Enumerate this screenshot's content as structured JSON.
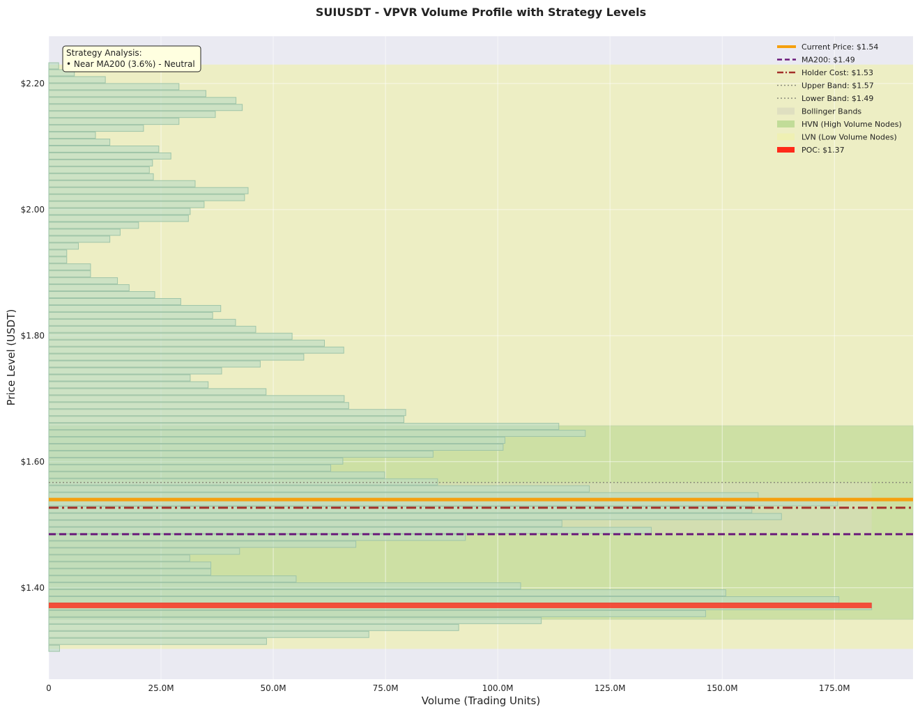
{
  "chart_data": {
    "type": "bar",
    "orientation": "horizontal",
    "title": "SUIUSDT - VPVR Volume Profile with Strategy Levels",
    "xlabel": "Volume (Trading Units)",
    "ylabel": "Price Level (USDT)",
    "xlim": [
      0,
      192500000
    ],
    "ylim": [
      1.255,
      2.275
    ],
    "grid": true,
    "legend_position": "top-right",
    "x_ticks": [
      {
        "value": 0,
        "label": "0"
      },
      {
        "value": 25000000,
        "label": "25.0M"
      },
      {
        "value": 50000000,
        "label": "50.0M"
      },
      {
        "value": 75000000,
        "label": "75.0M"
      },
      {
        "value": 100000000,
        "label": "100.0M"
      },
      {
        "value": 125000000,
        "label": "125.0M"
      },
      {
        "value": 150000000,
        "label": "150.0M"
      },
      {
        "value": 175000000,
        "label": "175.0M"
      }
    ],
    "y_ticks": [
      {
        "value": 1.4,
        "label": "$1.40"
      },
      {
        "value": 1.6,
        "label": "$1.60"
      },
      {
        "value": 1.8,
        "label": "$1.80"
      },
      {
        "value": 2.0,
        "label": "$2.00"
      },
      {
        "value": 2.2,
        "label": "$2.20"
      }
    ],
    "price_bin_size": 0.011,
    "volume_profile": [
      {
        "price": 2.228,
        "volume": 2.2
      },
      {
        "price": 2.217,
        "volume": 5.7
      },
      {
        "price": 2.206,
        "volume": 12.6
      },
      {
        "price": 2.195,
        "volume": 29.0
      },
      {
        "price": 2.184,
        "volume": 35.0
      },
      {
        "price": 2.173,
        "volume": 41.7
      },
      {
        "price": 2.162,
        "volume": 43.1
      },
      {
        "price": 2.151,
        "volume": 37.1
      },
      {
        "price": 2.14,
        "volume": 29.0
      },
      {
        "price": 2.129,
        "volume": 21.1
      },
      {
        "price": 2.118,
        "volume": 10.4
      },
      {
        "price": 2.107,
        "volume": 13.6
      },
      {
        "price": 2.096,
        "volume": 24.5
      },
      {
        "price": 2.085,
        "volume": 27.2
      },
      {
        "price": 2.074,
        "volume": 23.1
      },
      {
        "price": 2.063,
        "volume": 22.4
      },
      {
        "price": 2.052,
        "volume": 23.3
      },
      {
        "price": 2.041,
        "volume": 32.6
      },
      {
        "price": 2.03,
        "volume": 44.4
      },
      {
        "price": 2.019,
        "volume": 43.6
      },
      {
        "price": 2.008,
        "volume": 34.6
      },
      {
        "price": 1.997,
        "volume": 31.5
      },
      {
        "price": 1.986,
        "volume": 31.1
      },
      {
        "price": 1.975,
        "volume": 20.0
      },
      {
        "price": 1.964,
        "volume": 15.9
      },
      {
        "price": 1.953,
        "volume": 13.6
      },
      {
        "price": 1.942,
        "volume": 6.6
      },
      {
        "price": 1.931,
        "volume": 4.0
      },
      {
        "price": 1.92,
        "volume": 4.0
      },
      {
        "price": 1.909,
        "volume": 9.3
      },
      {
        "price": 1.898,
        "volume": 9.3
      },
      {
        "price": 1.887,
        "volume": 15.3
      },
      {
        "price": 1.876,
        "volume": 17.9
      },
      {
        "price": 1.865,
        "volume": 23.6
      },
      {
        "price": 1.854,
        "volume": 29.4
      },
      {
        "price": 1.843,
        "volume": 38.3
      },
      {
        "price": 1.832,
        "volume": 36.5
      },
      {
        "price": 1.821,
        "volume": 41.6
      },
      {
        "price": 1.81,
        "volume": 46.1
      },
      {
        "price": 1.799,
        "volume": 54.2
      },
      {
        "price": 1.788,
        "volume": 61.4
      },
      {
        "price": 1.777,
        "volume": 65.7
      },
      {
        "price": 1.766,
        "volume": 56.8
      },
      {
        "price": 1.755,
        "volume": 47.1
      },
      {
        "price": 1.744,
        "volume": 38.5
      },
      {
        "price": 1.733,
        "volume": 31.5
      },
      {
        "price": 1.722,
        "volume": 35.5
      },
      {
        "price": 1.711,
        "volume": 48.4
      },
      {
        "price": 1.7,
        "volume": 65.8
      },
      {
        "price": 1.689,
        "volume": 66.8
      },
      {
        "price": 1.678,
        "volume": 79.5
      },
      {
        "price": 1.667,
        "volume": 79.1
      },
      {
        "price": 1.656,
        "volume": 113.6
      },
      {
        "price": 1.645,
        "volume": 119.5
      },
      {
        "price": 1.634,
        "volume": 101.6
      },
      {
        "price": 1.623,
        "volume": 101.2
      },
      {
        "price": 1.612,
        "volume": 85.6
      },
      {
        "price": 1.601,
        "volume": 65.5
      },
      {
        "price": 1.59,
        "volume": 62.8
      },
      {
        "price": 1.579,
        "volume": 74.8
      },
      {
        "price": 1.568,
        "volume": 86.6
      },
      {
        "price": 1.557,
        "volume": 120.4
      },
      {
        "price": 1.546,
        "volume": 158.0
      },
      {
        "price": 1.535,
        "volume": 175.7
      },
      {
        "price": 1.524,
        "volume": 156.6
      },
      {
        "price": 1.513,
        "volume": 163.2
      },
      {
        "price": 1.502,
        "volume": 114.3
      },
      {
        "price": 1.491,
        "volume": 134.2
      },
      {
        "price": 1.48,
        "volume": 92.8
      },
      {
        "price": 1.469,
        "volume": 68.4
      },
      {
        "price": 1.458,
        "volume": 42.5
      },
      {
        "price": 1.447,
        "volume": 31.4
      },
      {
        "price": 1.436,
        "volume": 36.1
      },
      {
        "price": 1.425,
        "volume": 36.1
      },
      {
        "price": 1.414,
        "volume": 55.1
      },
      {
        "price": 1.403,
        "volume": 105.1
      },
      {
        "price": 1.392,
        "volume": 150.8
      },
      {
        "price": 1.381,
        "volume": 176.0
      },
      {
        "price": 1.37,
        "volume": 183.3
      },
      {
        "price": 1.359,
        "volume": 146.3
      },
      {
        "price": 1.348,
        "volume": 109.7
      },
      {
        "price": 1.337,
        "volume": 91.3
      },
      {
        "price": 1.326,
        "volume": 71.3
      },
      {
        "price": 1.315,
        "volume": 48.5
      },
      {
        "price": 1.304,
        "volume": 2.4
      }
    ],
    "volume_unit": "M",
    "levels": [
      {
        "key": "current",
        "value": 1.54,
        "label": "Current Price: $1.54",
        "color": "#f5a00f",
        "style": "solid"
      },
      {
        "key": "ma200",
        "value": 1.485,
        "label": "MA200: $1.49",
        "color": "#6a1a7a",
        "style": "dashed"
      },
      {
        "key": "holder",
        "value": 1.527,
        "label": "Holder Cost: $1.53",
        "color": "#a3302a",
        "style": "dashdot"
      },
      {
        "key": "upper",
        "value": 1.567,
        "label": "Upper Band: $1.57",
        "color": "#8a8a7a",
        "style": "dotted"
      },
      {
        "key": "lower",
        "value": 1.485,
        "label": "Lower Band: $1.49",
        "color": "#8a8a7a",
        "style": "dotted"
      }
    ],
    "poc": {
      "value": 1.372,
      "label": "POC: $1.37",
      "color": "#ff2a1a"
    },
    "bollinger_band": {
      "low": 1.485,
      "high": 1.567,
      "label": "Bollinger Bands",
      "color": "#dcdcc0"
    },
    "hvn_zone": {
      "low": 1.35,
      "high": 1.657,
      "label": "HVN (High Volume Nodes)",
      "color": "#b8d890"
    },
    "lvn_zone": {
      "low": 1.303,
      "high": 2.23,
      "label": "LVN (Low Volume Nodes)",
      "color": "#eef0b0"
    },
    "annotation": {
      "title": "Strategy Analysis:",
      "line": "• Near MA200 (3.6%) - Neutral"
    }
  }
}
